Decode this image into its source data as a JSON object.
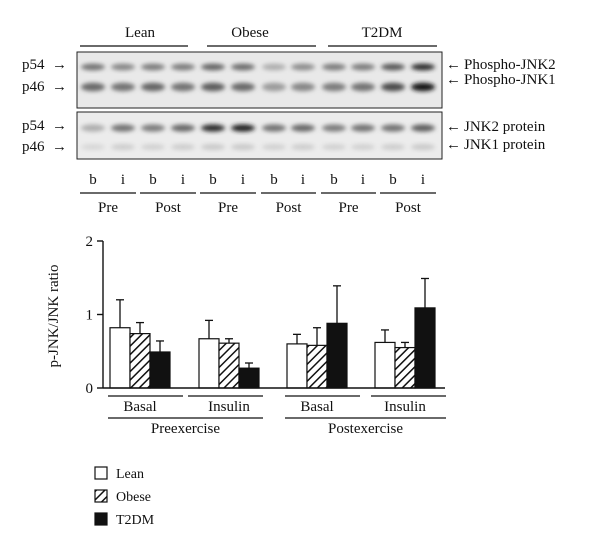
{
  "blot": {
    "groups": [
      "Lean",
      "Obese",
      "T2DM"
    ],
    "lane_labels": [
      "b",
      "i",
      "b",
      "i",
      "b",
      "i",
      "b",
      "i",
      "b",
      "i",
      "b",
      "i"
    ],
    "phase_labels": [
      "Pre",
      "Post",
      "Pre",
      "Post",
      "Pre",
      "Post"
    ],
    "phospho_panel": {
      "left_markers": [
        "p54",
        "p46"
      ],
      "right_labels": [
        "Phospho-JNK2",
        "Phospho-JNK1"
      ],
      "p54_intensity": [
        0.55,
        0.45,
        0.5,
        0.5,
        0.62,
        0.58,
        0.25,
        0.42,
        0.5,
        0.5,
        0.68,
        0.9
      ],
      "p46_intensity": [
        0.6,
        0.55,
        0.62,
        0.55,
        0.66,
        0.6,
        0.35,
        0.45,
        0.5,
        0.55,
        0.75,
        1.0
      ]
    },
    "protein_panel": {
      "left_markers": [
        "p54",
        "p46"
      ],
      "right_labels": [
        "JNK2 protein",
        "JNK1 protein"
      ],
      "p54_intensity": [
        0.25,
        0.55,
        0.5,
        0.6,
        0.9,
        0.95,
        0.55,
        0.6,
        0.5,
        0.55,
        0.55,
        0.65
      ],
      "p46_intensity": [
        0.05,
        0.1,
        0.08,
        0.1,
        0.12,
        0.12,
        0.08,
        0.1,
        0.08,
        0.08,
        0.1,
        0.12
      ]
    }
  },
  "chart_data": {
    "type": "bar",
    "ylabel": "p-JNK/JNK ratio",
    "ylim": [
      0,
      2
    ],
    "yticks": [
      0,
      1,
      2
    ],
    "categories": [
      "Basal",
      "Insulin",
      "Basal",
      "Insulin"
    ],
    "category_groups": [
      {
        "label": "Preexercise",
        "categories": [
          "Basal",
          "Insulin"
        ]
      },
      {
        "label": "Postexercise",
        "categories": [
          "Basal",
          "Insulin"
        ]
      }
    ],
    "series": [
      {
        "name": "Lean",
        "fill": "white",
        "values": [
          0.82,
          0.67,
          0.6,
          0.62
        ],
        "errors": [
          0.38,
          0.25,
          0.13,
          0.17
        ]
      },
      {
        "name": "Obese",
        "fill": "hatch",
        "values": [
          0.74,
          0.61,
          0.58,
          0.55
        ],
        "errors": [
          0.15,
          0.06,
          0.24,
          0.07
        ]
      },
      {
        "name": "T2DM",
        "fill": "black",
        "values": [
          0.49,
          0.27,
          0.88,
          1.09
        ],
        "errors": [
          0.15,
          0.07,
          0.51,
          0.4
        ]
      }
    ],
    "legend_position": "bottom-left",
    "grid": false
  }
}
